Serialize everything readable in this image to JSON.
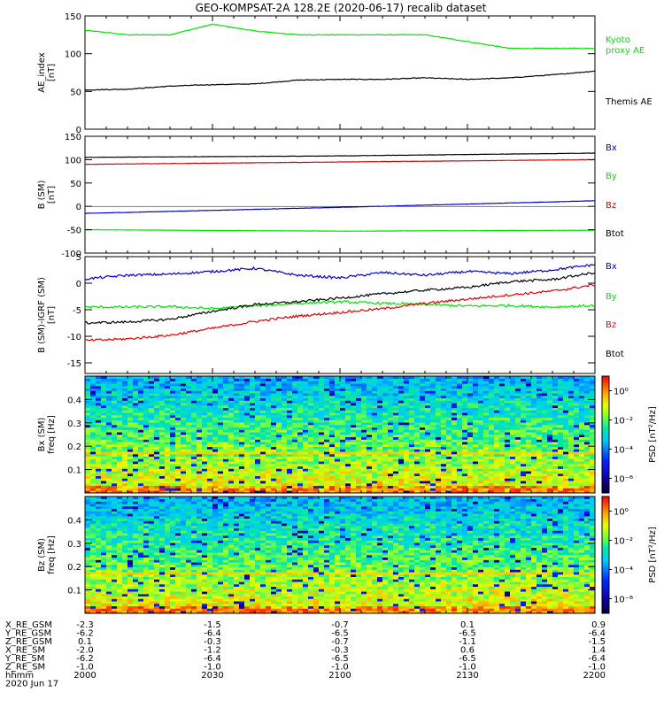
{
  "title": "GEO-KOMPSAT-2A 128.2E (2020-06-17) recalib dataset",
  "colors": {
    "black": "#000000",
    "green": "#00e000",
    "red": "#e00000",
    "blue": "#0000cc",
    "axis": "#000000"
  },
  "chart_data": [
    {
      "type": "line",
      "panel": "ae",
      "ylabel": [
        "AE_index",
        "[nT]"
      ],
      "ylim": [
        0,
        150
      ],
      "yticks": [
        0,
        50,
        100,
        150
      ],
      "x": [
        0,
        10,
        20,
        30,
        40,
        50,
        60,
        70,
        80,
        90,
        100,
        110,
        120
      ],
      "series": [
        {
          "name": "Kyoto proxy AE",
          "color": "green",
          "values": [
            131,
            125,
            125,
            139,
            130,
            125,
            125,
            125,
            125,
            116,
            107,
            107,
            107
          ]
        },
        {
          "name": "Themis AE",
          "color": "black",
          "values": [
            52,
            53,
            57,
            59,
            60,
            65,
            66,
            66,
            68,
            66,
            68,
            72,
            77
          ]
        }
      ],
      "legend": [
        {
          "text": "Kyoto",
          "color": "green"
        },
        {
          "text": "proxy AE",
          "color": "green"
        },
        {
          "text": "Themis AE",
          "color": "black"
        }
      ]
    },
    {
      "type": "line",
      "panel": "b",
      "ylabel": [
        "B (SM)",
        "[nT]"
      ],
      "ylim": [
        -100,
        150
      ],
      "yticks": [
        -100,
        -50,
        0,
        50,
        100,
        150
      ],
      "x": [
        0,
        60,
        120
      ],
      "series": [
        {
          "name": "Btot",
          "color": "black",
          "values": [
            105,
            108,
            114
          ]
        },
        {
          "name": "Bz",
          "color": "red",
          "values": [
            90,
            95,
            100
          ]
        },
        {
          "name": "Bx",
          "color": "blue",
          "values": [
            -15,
            -2,
            12
          ]
        },
        {
          "name": "By",
          "color": "green",
          "values": [
            -50,
            -53,
            -51
          ]
        }
      ],
      "legend": [
        {
          "text": "Bx",
          "color": "blue"
        },
        {
          "text": "By",
          "color": "green"
        },
        {
          "text": "Bz",
          "color": "red"
        },
        {
          "text": "Btot",
          "color": "black"
        }
      ]
    },
    {
      "type": "line",
      "panel": "dbb",
      "ylabel": [
        "B (SM)-IGRF (SM)",
        "[nT]"
      ],
      "ylim": [
        -17,
        5
      ],
      "yticks": [
        -15,
        -10,
        -5,
        0,
        5
      ],
      "x": [
        0,
        10,
        20,
        30,
        40,
        50,
        60,
        70,
        80,
        90,
        100,
        110,
        120
      ],
      "series": [
        {
          "name": "Bx",
          "color": "blue",
          "values": [
            0.8,
            1.5,
            1.7,
            2.2,
            2.8,
            1.5,
            1.0,
            2.0,
            1.5,
            2.2,
            1.8,
            2.5,
            3.5
          ]
        },
        {
          "name": "By",
          "color": "green",
          "values": [
            -4.5,
            -4.5,
            -4.4,
            -4.8,
            -4.3,
            -3.8,
            -3.5,
            -3.8,
            -4.0,
            -4.3,
            -4.2,
            -4.5,
            -4.2
          ]
        },
        {
          "name": "Bz",
          "color": "red",
          "values": [
            -10.8,
            -10.5,
            -9.8,
            -8.5,
            -7.2,
            -6.2,
            -5.5,
            -4.8,
            -3.8,
            -3.0,
            -2.2,
            -1.5,
            -0.3
          ]
        },
        {
          "name": "Btot",
          "color": "black",
          "values": [
            -7.5,
            -7.3,
            -6.8,
            -5.3,
            -4.0,
            -3.5,
            -2.8,
            -2.0,
            -1.3,
            -0.8,
            0.3,
            0.7,
            2.0
          ]
        }
      ],
      "legend": [
        {
          "text": "Bx",
          "color": "blue"
        },
        {
          "text": "By",
          "color": "green"
        },
        {
          "text": "Bz",
          "color": "red"
        },
        {
          "text": "Btot",
          "color": "black"
        }
      ]
    },
    {
      "type": "heatmap",
      "panel": "spec_bx",
      "ylabel": [
        "Bx (SM)",
        "freq [Hz]"
      ],
      "ylim": [
        0,
        0.5
      ],
      "yticks": [
        0.1,
        0.2,
        0.3,
        0.4
      ],
      "colorbar": {
        "label": "PSD [nT²/Hz]",
        "ticks": [
          "10⁰",
          "10⁻²",
          "10⁻⁴",
          "10⁻⁶"
        ],
        "tick_exponents": [
          0,
          -2,
          -4,
          -6
        ],
        "range_exponent": [
          -7,
          1
        ]
      },
      "band_hz": 0.165
    },
    {
      "type": "heatmap",
      "panel": "spec_bz",
      "ylabel": [
        "Bz (SM)",
        "freq [Hz]"
      ],
      "ylim": [
        0,
        0.5
      ],
      "yticks": [
        0.1,
        0.2,
        0.3,
        0.4
      ],
      "colorbar": {
        "label": "PSD [nT²/Hz]",
        "ticks": [
          "10⁰",
          "10⁻²",
          "10⁻⁴",
          "10⁻⁶"
        ],
        "tick_exponents": [
          0,
          -2,
          -4,
          -6
        ],
        "range_exponent": [
          -7,
          1
        ]
      },
      "band_hz": 0.165
    }
  ],
  "ephemeris": {
    "labels": [
      "X_RE_GSM",
      "Y_RE_GSM",
      "Z_RE_GSM",
      "X_RE_SM",
      "Y_RE_SM",
      "Z_RE_SM",
      "hhmm",
      "2020 Jun 17"
    ],
    "columns": [
      [
        "-2.3",
        "-6.2",
        "0.1",
        "-2.0",
        "-6.2",
        "-1.0",
        "2000"
      ],
      [
        "-1.5",
        "-6.4",
        "-0.3",
        "-1.2",
        "-6.4",
        "-1.0",
        "2030"
      ],
      [
        "-0.7",
        "-6.5",
        "-0.7",
        "-0.3",
        "-6.5",
        "-1.0",
        "2100"
      ],
      [
        "0.1",
        "-6.5",
        "-1.1",
        "0.6",
        "-6.5",
        "-1.0",
        "2130"
      ],
      [
        "0.9",
        "-6.4",
        "-1.5",
        "1.4",
        "-6.4",
        "-1.0",
        "2200"
      ]
    ]
  }
}
